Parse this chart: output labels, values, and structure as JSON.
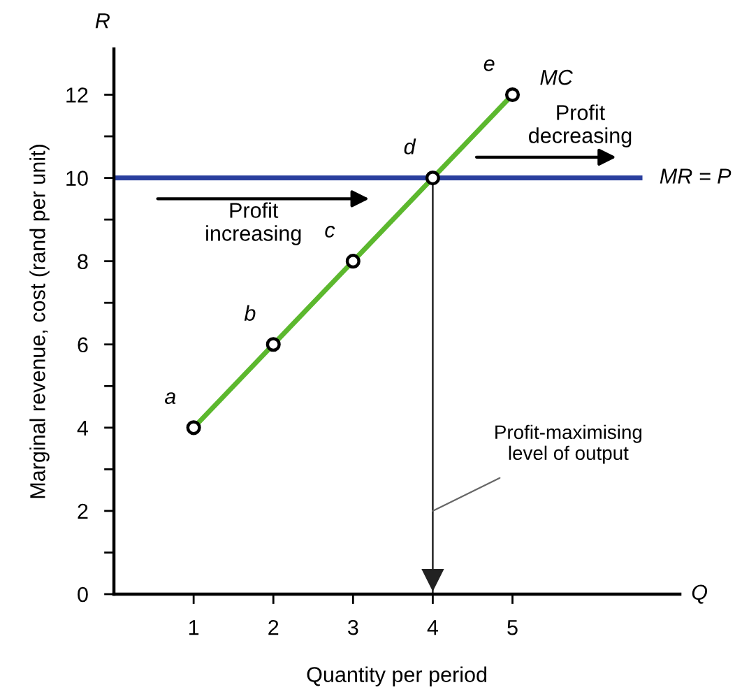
{
  "chart_data": {
    "type": "line",
    "xlabel": "Quantity per period",
    "ylabel": "Marginal revenue, cost (rand per unit)",
    "xlim": [
      0,
      7.1
    ],
    "ylim": [
      0,
      13.1
    ],
    "xticks": [
      1,
      2,
      3,
      4,
      5
    ],
    "yticks": [
      {
        "value": 0,
        "label": "0"
      },
      {
        "value": 1,
        "label": null
      },
      2,
      {
        "value": 3,
        "label": null
      },
      4,
      {
        "value": 5,
        "label": null
      },
      6,
      {
        "value": 7,
        "label": null
      },
      8,
      {
        "value": 9,
        "label": null
      },
      10,
      {
        "value": 11,
        "label": null
      },
      12
    ],
    "series": [
      {
        "name": "MC",
        "color": "#5cb82e",
        "x": [
          1,
          2,
          3,
          4,
          5
        ],
        "values": [
          4,
          6,
          8,
          10,
          12
        ],
        "marker": "circle"
      },
      {
        "name": "MR = P",
        "color": "#2a3f9e",
        "x": [
          0,
          6.6
        ],
        "values": [
          10,
          10
        ]
      }
    ],
    "ref_lines": [
      {
        "axis": "x",
        "value": 4,
        "label": "Profit-maximising level of output",
        "color": "#222222"
      }
    ],
    "annotations": [
      "R",
      "Q",
      {
        "text": "a",
        "x": 1,
        "y": 4
      },
      {
        "text": "b",
        "x": 2,
        "y": 6
      },
      {
        "text": "c",
        "x": 3,
        "y": 8
      },
      {
        "text": "d",
        "x": 4,
        "y": 10
      },
      {
        "text": "e",
        "x": 5,
        "y": 12
      },
      "Profit increasing",
      "Profit decreasing"
    ],
    "grid": false
  }
}
